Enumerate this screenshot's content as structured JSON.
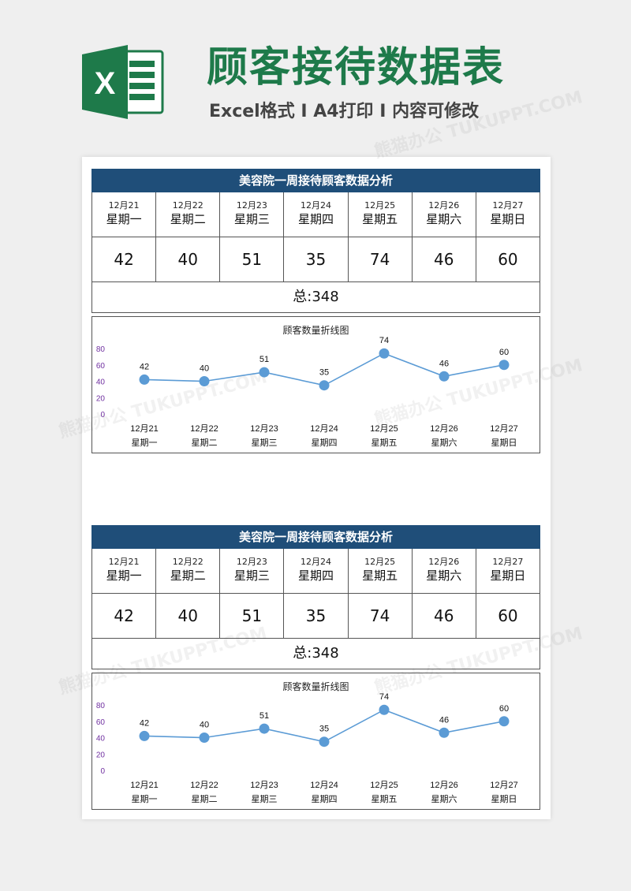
{
  "header": {
    "title": "顾客接待数据表",
    "subtitle": "Excel格式 I A4打印 I 内容可修改",
    "logo_letter": "X"
  },
  "watermark": "熊猫办公 TUKUPPT.COM",
  "colors": {
    "title_green": "#1e7a4a",
    "header_blue": "#1f4e79",
    "line_blue": "#5b9bd5",
    "axis_purple": "#7030a0"
  },
  "tables": [
    {
      "title": "美容院一周接待顾客数据分析",
      "days": [
        {
          "date": "12月21",
          "weekday": "星期一",
          "value": "42"
        },
        {
          "date": "12月22",
          "weekday": "星期二",
          "value": "40"
        },
        {
          "date": "12月23",
          "weekday": "星期三",
          "value": "51"
        },
        {
          "date": "12月24",
          "weekday": "星期四",
          "value": "35"
        },
        {
          "date": "12月25",
          "weekday": "星期五",
          "value": "74"
        },
        {
          "date": "12月26",
          "weekday": "星期六",
          "value": "46"
        },
        {
          "date": "12月27",
          "weekday": "星期日",
          "value": "60"
        }
      ],
      "total": "总:348",
      "chart_data": {
        "type": "line",
        "title": "顾客数量折线图",
        "categories": [
          "12月21",
          "12月22",
          "12月23",
          "12月24",
          "12月25",
          "12月26",
          "12月27"
        ],
        "category_sub": [
          "星期一",
          "星期二",
          "星期三",
          "星期四",
          "星期五",
          "星期六",
          "星期日"
        ],
        "values": [
          42,
          40,
          51,
          35,
          74,
          46,
          60
        ],
        "yticks": [
          0,
          20,
          40,
          60,
          80
        ],
        "ylim": [
          0,
          80
        ],
        "grid": false,
        "data_labels": true
      }
    },
    {
      "title": "美容院一周接待顾客数据分析",
      "days": [
        {
          "date": "12月21",
          "weekday": "星期一",
          "value": "42"
        },
        {
          "date": "12月22",
          "weekday": "星期二",
          "value": "40"
        },
        {
          "date": "12月23",
          "weekday": "星期三",
          "value": "51"
        },
        {
          "date": "12月24",
          "weekday": "星期四",
          "value": "35"
        },
        {
          "date": "12月25",
          "weekday": "星期五",
          "value": "74"
        },
        {
          "date": "12月26",
          "weekday": "星期六",
          "value": "46"
        },
        {
          "date": "12月27",
          "weekday": "星期日",
          "value": "60"
        }
      ],
      "total": "总:348",
      "chart_data": {
        "type": "line",
        "title": "顾客数量折线图",
        "categories": [
          "12月21",
          "12月22",
          "12月23",
          "12月24",
          "12月25",
          "12月26",
          "12月27"
        ],
        "category_sub": [
          "星期一",
          "星期二",
          "星期三",
          "星期四",
          "星期五",
          "星期六",
          "星期日"
        ],
        "values": [
          42,
          40,
          51,
          35,
          74,
          46,
          60
        ],
        "yticks": [
          0,
          20,
          40,
          60,
          80
        ],
        "ylim": [
          0,
          80
        ],
        "grid": false,
        "data_labels": true
      }
    }
  ]
}
